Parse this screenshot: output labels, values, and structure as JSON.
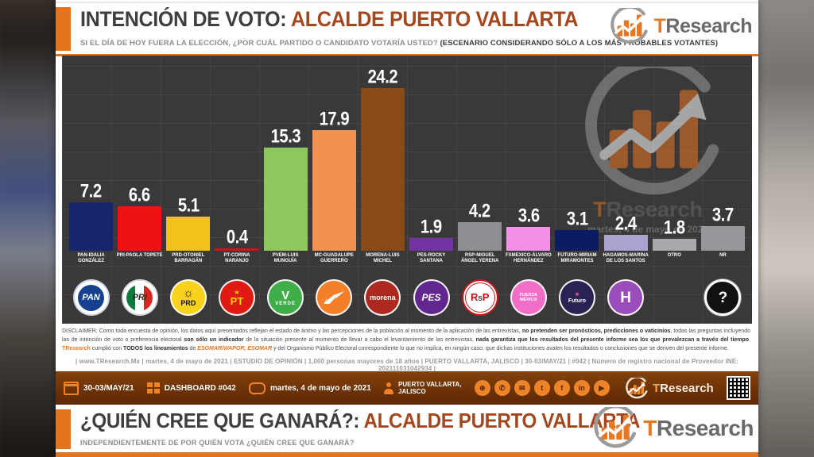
{
  "brand": {
    "name": "TResearch",
    "accent_color": "#e87722",
    "gray_color": "#6b6a68"
  },
  "header": {
    "title_dark": "INTENCIÓN DE VOTO:",
    "title_accent": "ALCALDE PUERTO VALLARTA",
    "subtitle_normal": "SI EL DÍA DE HOY FUERA LA ELECCIÓN, ¿POR CUÁL PARTIDO O CANDIDATO VOTARÍA USTED? ",
    "subtitle_bold": "(ESCENARIO CONSIDERANDO SÓLO A LOS MÁS PROBABLES VOTANTES)"
  },
  "chart_data": {
    "type": "bar",
    "title": "INTENCIÓN DE VOTO: ALCALDE PUERTO VALLARTA",
    "ylim": [
      0,
      26
    ],
    "grid": true,
    "value_labels": true,
    "watermark": "TResearch",
    "watermark_date": "martes, 4 de mayo de 2021",
    "categories": [
      "PAN-IDALIA GONZÁLEZ",
      "PRI-PAOLA TOPETE",
      "PRD-OTONIEL BARRAGÁN",
      "PT-CORINA NARANJO",
      "PVEM-LUIS MUNGUÍA",
      "MC-GUADALUPE GUERRERO",
      "MORENA-LUIS MICHEL",
      "PES-ROCKY SANTANA",
      "RSP-MIGUEL ÁNGEL YERENA",
      "FXMEXICO-ÁLVARO HERNÁNDEZ",
      "FUTURO-MIRIAM MIRAMONTES",
      "HAGAMOS-MARINA DE LOS SANTOS",
      "OTRO",
      "NR"
    ],
    "values": [
      7.2,
      6.6,
      5.1,
      0.4,
      15.3,
      17.9,
      24.2,
      1.9,
      4.2,
      3.6,
      3.1,
      2.4,
      1.8,
      3.7
    ],
    "bars": [
      {
        "label": "PAN-IDALIA GONZÁLEZ",
        "value": "7.2",
        "num": 7.2,
        "color": "#16256d",
        "logo": {
          "kind": "pan",
          "text": "PAN"
        }
      },
      {
        "label": "PRI-PAOLA TOPETE",
        "value": "6.6",
        "num": 6.6,
        "color": "#ee1313",
        "logo": {
          "kind": "pri",
          "text": "PRI"
        }
      },
      {
        "label": "PRD-OTONIEL BARRAGÁN",
        "value": "5.1",
        "num": 5.1,
        "color": "#f3c11b",
        "logo": {
          "kind": "prd",
          "text": "PRD"
        }
      },
      {
        "label": "PT-CORINA NARANJO",
        "value": "0.4",
        "num": 0.4,
        "color": "#d01414",
        "logo": {
          "kind": "pt",
          "text": "PT"
        }
      },
      {
        "label": "PVEM-LUIS MUNGUÍA",
        "value": "15.3",
        "num": 15.3,
        "color": "#8ec75e",
        "logo": {
          "kind": "verde",
          "text": "VERDE"
        }
      },
      {
        "label": "MC-GUADALUPE GUERRERO",
        "value": "17.9",
        "num": 17.9,
        "color": "#f4914f",
        "logo": {
          "kind": "mc",
          "text": "MOVIMIENTO CIUDADANO"
        }
      },
      {
        "label": "MORENA-LUIS MICHEL",
        "value": "24.2",
        "num": 24.2,
        "color": "#8a4a16",
        "logo": {
          "kind": "morena",
          "text": "morena"
        }
      },
      {
        "label": "PES-ROCKY SANTANA",
        "value": "1.9",
        "num": 1.9,
        "color": "#7433a4",
        "logo": {
          "kind": "pes",
          "text": "PES"
        }
      },
      {
        "label": "RSP-MIGUEL ÁNGEL YERENA",
        "value": "4.2",
        "num": 4.2,
        "color": "#8f8f93",
        "logo": {
          "kind": "rsp",
          "text": "RSP"
        }
      },
      {
        "label": "FXMEXICO-ÁLVARO HERNÁNDEZ",
        "value": "3.6",
        "num": 3.6,
        "color": "#f590ea",
        "logo": {
          "kind": "fxm",
          "text": "FUERZA MÉXICO"
        }
      },
      {
        "label": "FUTURO-MIRIAM MIRAMONTES",
        "value": "3.1",
        "num": 3.1,
        "color": "#0c1c63",
        "logo": {
          "kind": "futuro",
          "text": "Futuro"
        }
      },
      {
        "label": "HAGAMOS-MARINA DE LOS SANTOS",
        "value": "2.4",
        "num": 2.4,
        "color": "#aaa2cf",
        "logo": {
          "kind": "hagamos",
          "text": "H"
        }
      },
      {
        "label": "OTRO",
        "value": "1.8",
        "num": 1.8,
        "color": "#a9a9ad",
        "logo": {
          "kind": "none",
          "text": ""
        }
      },
      {
        "label": "NR",
        "value": "3.7",
        "num": 3.7,
        "color": "#97979b",
        "logo": {
          "kind": "nr",
          "text": "?"
        }
      }
    ]
  },
  "disclaimer": {
    "segments": [
      {
        "t": "DISCLAIMER: Como toda encuesta de opinión, los datos aquí presentados reflejan el estado de ánimo y las percepciones de la población al momento de la aplicación de las entrevistas, ",
        "s": []
      },
      {
        "t": "no pretenden ser pronósticos, predicciones o vaticinios",
        "s": [
          "b"
        ]
      },
      {
        "t": ", todas las preguntas incluyendo las de intención de voto o preferencia electoral ",
        "s": []
      },
      {
        "t": "son sólo un indicador",
        "s": [
          "b"
        ]
      },
      {
        "t": " de la situación presente al momento de llevar a cabo el levantamiento de las entrevistas, ",
        "s": []
      },
      {
        "t": "nada garantiza que los resultados del presente informe sea los que prevalezcan a través del tiempo",
        "s": [
          "b"
        ]
      },
      {
        "t": ". ",
        "s": []
      },
      {
        "t": "TResearch",
        "s": [
          "o"
        ]
      },
      {
        "t": " cumplió con ",
        "s": []
      },
      {
        "t": "TODOS los lineamientos",
        "s": [
          "b"
        ]
      },
      {
        "t": " de ",
        "s": []
      },
      {
        "t": "ESOMAR/WAPOR, ESOMAR",
        "s": [
          "o",
          "i"
        ]
      },
      {
        "t": " y del Organismo Público Electoral correspondiente lo que no implica, en ningún caso, que dichas instituciones avalen los resultados o conclusiones que se deriven del presente informe.",
        "s": []
      }
    ]
  },
  "methodology": {
    "line": "| www.TResearch.Mx | martes, 4 de mayo de 2021 | ESTUDIO DE OPINIÓN | 1,000 personas mayores de 18 años | PUERTO VALLARTA, JALISCO | 30-03/MAY/21 | #042 | Número de registro nacional de Proveedor INE: 202111031042934 |"
  },
  "footer_bar": {
    "date_range": "30-03/MAY/21",
    "dashboard_label": "DASHBOARD #042",
    "survey_date": "martes, 4 de mayo de 2021",
    "location_line1": "PUERTO VALLARTA,",
    "location_line2": "JALISCO",
    "socials": [
      {
        "name": "website",
        "glyph": "⊕"
      },
      {
        "name": "whatsapp",
        "glyph": "✆"
      },
      {
        "name": "email",
        "glyph": "✉"
      },
      {
        "name": "twitter",
        "glyph": "t"
      },
      {
        "name": "facebook",
        "glyph": "f"
      },
      {
        "name": "linkedin",
        "glyph": "in"
      },
      {
        "name": "youtube",
        "glyph": "▶"
      }
    ],
    "qr_label": "qr-code"
  },
  "bottom": {
    "title_dark": "¿QUIÉN CREE QUE GANARÁ?:",
    "title_accent": "ALCALDE PUERTO VALLARTA",
    "subtitle": "INDEPENDIENTEMENTE DE POR QUIÉN VOTA ¿QUIÉN CREE QUE GANARÁ?"
  }
}
